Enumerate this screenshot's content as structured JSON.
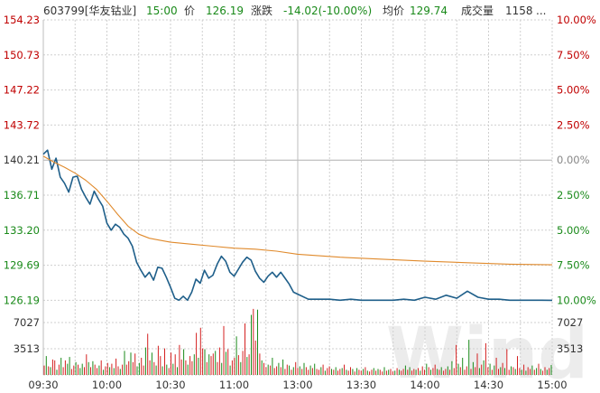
{
  "header": {
    "code_name": "603799[华友钴业]",
    "time": "15:00",
    "price_label": "价",
    "price": "126.19",
    "change_label": "涨跌",
    "change": "-14.02(-10.00%)",
    "avg_label": "均价",
    "avg": "129.74",
    "volume_label": "成交量",
    "volume": "1158",
    "ellipsis": "..."
  },
  "watermark": "Wind",
  "colors": {
    "price_line": "#1f5f8a",
    "avg_line": "#e08a2c",
    "up": "#d42020",
    "down": "#1a8a1a",
    "grid": "#cfcfcf",
    "header_label": "#333333",
    "header_value_up": "#1a8a1a",
    "axis_text": "#333333",
    "pct_up": "#c00000",
    "pct_down": "#1a8a1a"
  },
  "chart_data": {
    "type": "line",
    "title": "",
    "xlabel": "",
    "ylabel": "",
    "ylim": [
      124.44,
      154.23
    ],
    "prev_close": 140.21,
    "left_ticks": [
      "154.23",
      "150.73",
      "147.22",
      "143.72",
      "140.21",
      "136.71",
      "133.20",
      "129.69",
      "126.19"
    ],
    "right_ticks": [
      "10.00%",
      "7.50%",
      "5.00%",
      "2.50%",
      "0.00%",
      "2.50%",
      "5.00%",
      "7.50%",
      "10.00%"
    ],
    "x_ticks": [
      "09:30",
      "10:00",
      "10:30",
      "11:00",
      "13:00",
      "13:30",
      "14:00",
      "14:30",
      "15:00"
    ],
    "volume_ticks": [
      "7027",
      "3513"
    ],
    "volume_max": 8000,
    "series": [
      {
        "key": "price",
        "x": [
          0,
          2,
          4,
          6,
          8,
          10,
          12,
          14,
          16,
          18,
          20,
          22,
          24,
          26,
          28,
          30,
          32,
          34,
          36,
          38,
          40,
          42,
          44,
          46,
          48,
          50,
          52,
          54,
          56,
          58,
          60,
          62,
          64,
          66,
          68,
          70,
          72,
          74,
          76,
          78,
          80,
          82,
          84,
          86,
          88,
          90,
          92,
          94,
          96,
          98,
          100,
          102,
          104,
          106,
          108,
          110,
          112,
          114,
          116,
          118,
          120,
          125,
          130,
          135,
          140,
          145,
          150,
          155,
          160,
          165,
          170,
          175,
          180,
          185,
          190,
          195,
          200,
          205,
          210,
          215,
          220,
          225,
          230,
          235,
          240
        ],
        "y": [
          140.8,
          141.2,
          139.3,
          140.4,
          138.5,
          137.9,
          137.0,
          138.5,
          138.6,
          137.3,
          136.5,
          135.8,
          137.1,
          136.3,
          135.6,
          133.9,
          133.2,
          133.8,
          133.5,
          132.8,
          132.4,
          131.6,
          130.0,
          129.2,
          128.5,
          129.0,
          128.2,
          129.5,
          129.4,
          128.5,
          127.5,
          126.4,
          126.2,
          126.6,
          126.2,
          127.0,
          128.3,
          127.9,
          129.2,
          128.4,
          128.7,
          129.8,
          130.6,
          130.1,
          129.0,
          128.6,
          129.3,
          130.0,
          130.5,
          130.2,
          129.1,
          128.4,
          128.0,
          128.6,
          129.0,
          128.5,
          129.0,
          128.4,
          127.8,
          127.0,
          126.8,
          126.3,
          126.3,
          126.3,
          126.2,
          126.3,
          126.2,
          126.2,
          126.2,
          126.2,
          126.3,
          126.2,
          126.5,
          126.3,
          126.7,
          126.4,
          127.1,
          126.5,
          126.3,
          126.3,
          126.2,
          126.2,
          126.2,
          126.2,
          126.19
        ]
      },
      {
        "key": "avg",
        "x": [
          0,
          5,
          10,
          15,
          20,
          25,
          30,
          35,
          40,
          45,
          50,
          55,
          60,
          70,
          80,
          90,
          100,
          110,
          120,
          140,
          160,
          180,
          200,
          220,
          240
        ],
        "y": [
          140.6,
          140.0,
          139.5,
          138.9,
          138.2,
          137.3,
          136.1,
          134.8,
          133.6,
          132.8,
          132.4,
          132.2,
          132.0,
          131.8,
          131.6,
          131.4,
          131.3,
          131.1,
          130.8,
          130.5,
          130.3,
          130.1,
          129.95,
          129.8,
          129.74
        ]
      }
    ],
    "volume": [
      1100,
      2200,
      1000,
      900,
      1800,
      1700,
      600,
      1200,
      2000,
      900,
      1700,
      1300,
      2100,
      700,
      1100,
      1500,
      1200,
      800,
      1300,
      900,
      2400,
      1500,
      900,
      1600,
      1200,
      800,
      1100,
      1700,
      600,
      1000,
      1400,
      900,
      1300,
      800,
      1900,
      1000,
      700,
      1200,
      2800,
      1200,
      1600,
      2600,
      1500,
      2500,
      1000,
      1400,
      2000,
      1100,
      3200,
      4800,
      1700,
      2600,
      1500,
      1100,
      3400,
      2200,
      1000,
      3100,
      1200,
      800,
      2600,
      1300,
      2400,
      900,
      3500,
      1800,
      3000,
      1700,
      1200,
      2200,
      1600,
      2400,
      4900,
      2000,
      5500,
      3100,
      3000,
      1500,
      2400,
      2200,
      2500,
      2800,
      1500,
      3200,
      1400,
      5700,
      2700,
      3000,
      1100,
      1700,
      2000,
      4500,
      2300,
      1500,
      2800,
      6000,
      2100,
      2400,
      7000,
      7700,
      4000,
      7600,
      2500,
      1700,
      1400,
      900,
      1200,
      1100,
      2000,
      800,
      1000,
      1400,
      900,
      1800,
      700,
      1200,
      1100,
      600,
      900,
      1500,
      800,
      1000,
      700,
      1400,
      900,
      600,
      1100,
      800,
      1300,
      700,
      600,
      900,
      1200,
      500,
      800,
      1000,
      700,
      600,
      900,
      500,
      700,
      800,
      1200,
      600,
      500,
      900,
      700,
      400,
      800,
      600,
      500,
      700,
      900,
      500,
      400,
      600,
      800,
      500,
      700,
      600,
      400,
      900,
      500,
      600,
      700,
      400,
      500,
      800,
      600,
      500,
      700,
      1100,
      600,
      900,
      500,
      700,
      600,
      800,
      500,
      1000,
      600,
      1300,
      900,
      600,
      800,
      1200,
      700,
      600,
      900,
      500,
      700,
      1000,
      600,
      1600,
      800,
      3500,
      1300,
      900,
      2000,
      600,
      1000,
      4100,
      700,
      1500,
      900,
      2500,
      800,
      1200,
      1700,
      3700,
      900,
      1300,
      600,
      1100,
      2000,
      700,
      900,
      1400,
      800,
      3000,
      600,
      1000,
      900,
      700,
      2200,
      800,
      600,
      1200,
      500,
      900,
      700,
      1100,
      600,
      800,
      1300,
      700,
      500,
      900,
      600,
      800,
      1158
    ],
    "volume_dir": "rgrgrrgrgrrggrrgrggrrgrgrrgrgrrgrgrrgrgrrgrrggrrgrrgrgrrgrgrrgrgrrgrgrrgrgrrgrgrrgrrgrgrgrrgrgrrgrgrrgrgrrgrgrrgrgrrgrgrrgrgrrgrgrrgrgrrgrgrrgrgrrgrgrrgrgrrgrgrrgrgrrgrgrrgrgrrgrgrrgrgrrgrgrrgrgrrgrgrrgrgrrgrgrrgrgrrgrgrrgrgrrgrgrrg"
  }
}
